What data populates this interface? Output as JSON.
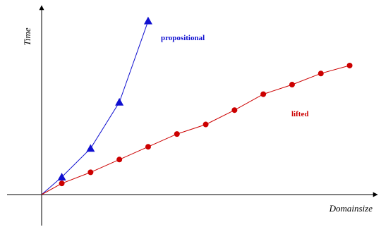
{
  "chart_data": {
    "type": "line",
    "xlabel": "Domainsize",
    "ylabel": "Time",
    "grid": false,
    "legend": "inline labels next to each series",
    "xlim": [
      0,
      11
    ],
    "ylim": [
      0,
      11
    ],
    "colors": {
      "propositional": "#1010d0",
      "lifted": "#cc0000",
      "axis": "#000000"
    },
    "series": [
      {
        "name": "propositional",
        "marker": "triangle",
        "x": [
          0,
          0.7,
          1.7,
          2.7,
          3.7
        ],
        "y": [
          0,
          1.1,
          2.9,
          5.8,
          10.9
        ]
      },
      {
        "name": "lifted",
        "marker": "circle",
        "x": [
          0,
          0.7,
          1.7,
          2.7,
          3.7,
          4.7,
          5.7,
          6.7,
          7.7,
          8.7,
          9.7,
          10.7
        ],
        "y": [
          0,
          0.7,
          1.4,
          2.2,
          3.0,
          3.8,
          4.4,
          5.3,
          6.3,
          6.9,
          7.6,
          8.1
        ]
      }
    ]
  }
}
